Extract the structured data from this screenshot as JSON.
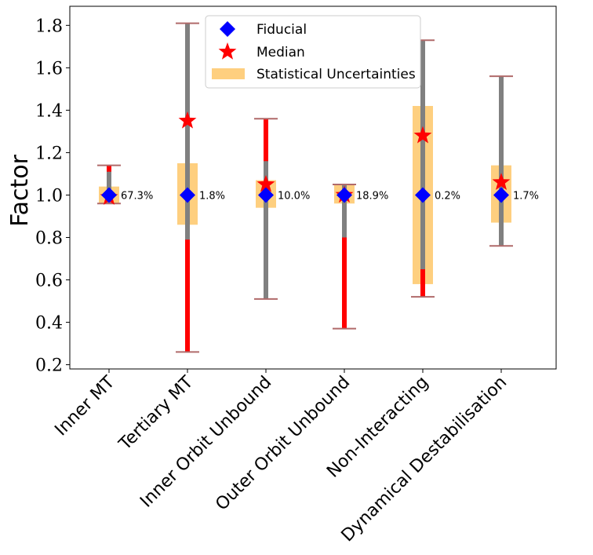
{
  "chart_data": {
    "type": "errorbar",
    "title": "",
    "xlabel": "",
    "ylabel": "Factor",
    "ylim": [
      0.18,
      1.89
    ],
    "yticks": [
      "0.2",
      "0.4",
      "0.6",
      "0.8",
      "1.0",
      "1.2",
      "1.4",
      "1.6",
      "1.8"
    ],
    "categories": [
      "Inner MT",
      "Tertiary MT",
      "Inner Orbit Unbound",
      "Outer Orbit Unbound",
      "Non-Interacting",
      "Dynamical Destabilisation"
    ],
    "fiducial": [
      1.0,
      1.0,
      1.0,
      1.0,
      1.0,
      1.0
    ],
    "median": [
      0.99,
      1.35,
      1.05,
      1.0,
      1.28,
      1.06
    ],
    "percent_labels": [
      "67.3%",
      "1.8%",
      "10.0%",
      "18.9%",
      "0.2%",
      "1.7%"
    ],
    "stat_uncertainty": [
      [
        0.96,
        1.04
      ],
      [
        0.86,
        1.15
      ],
      [
        0.94,
        1.07
      ],
      [
        0.96,
        1.05
      ],
      [
        0.58,
        1.42
      ],
      [
        0.87,
        1.14
      ]
    ],
    "error_range": [
      [
        0.96,
        1.14
      ],
      [
        0.26,
        1.81
      ],
      [
        0.51,
        1.36
      ],
      [
        0.37,
        1.05
      ],
      [
        0.52,
        1.73
      ],
      [
        0.76,
        1.56
      ]
    ],
    "gray_range": [
      [
        0.96,
        1.11
      ],
      [
        0.79,
        1.81
      ],
      [
        0.51,
        1.16
      ],
      [
        0.8,
        1.05
      ],
      [
        0.65,
        1.73
      ],
      [
        0.76,
        1.56
      ]
    ],
    "legend": {
      "position": "top-center",
      "entries": [
        "Fiducial",
        "Median",
        "Statistical Uncertainties"
      ]
    },
    "colors": {
      "fiducial": "#0000ff",
      "median": "#ff0000",
      "stat": "#fecf7f",
      "error_red": "#ff0000",
      "error_gray": "#808080",
      "cap": "#b06a6a"
    }
  }
}
